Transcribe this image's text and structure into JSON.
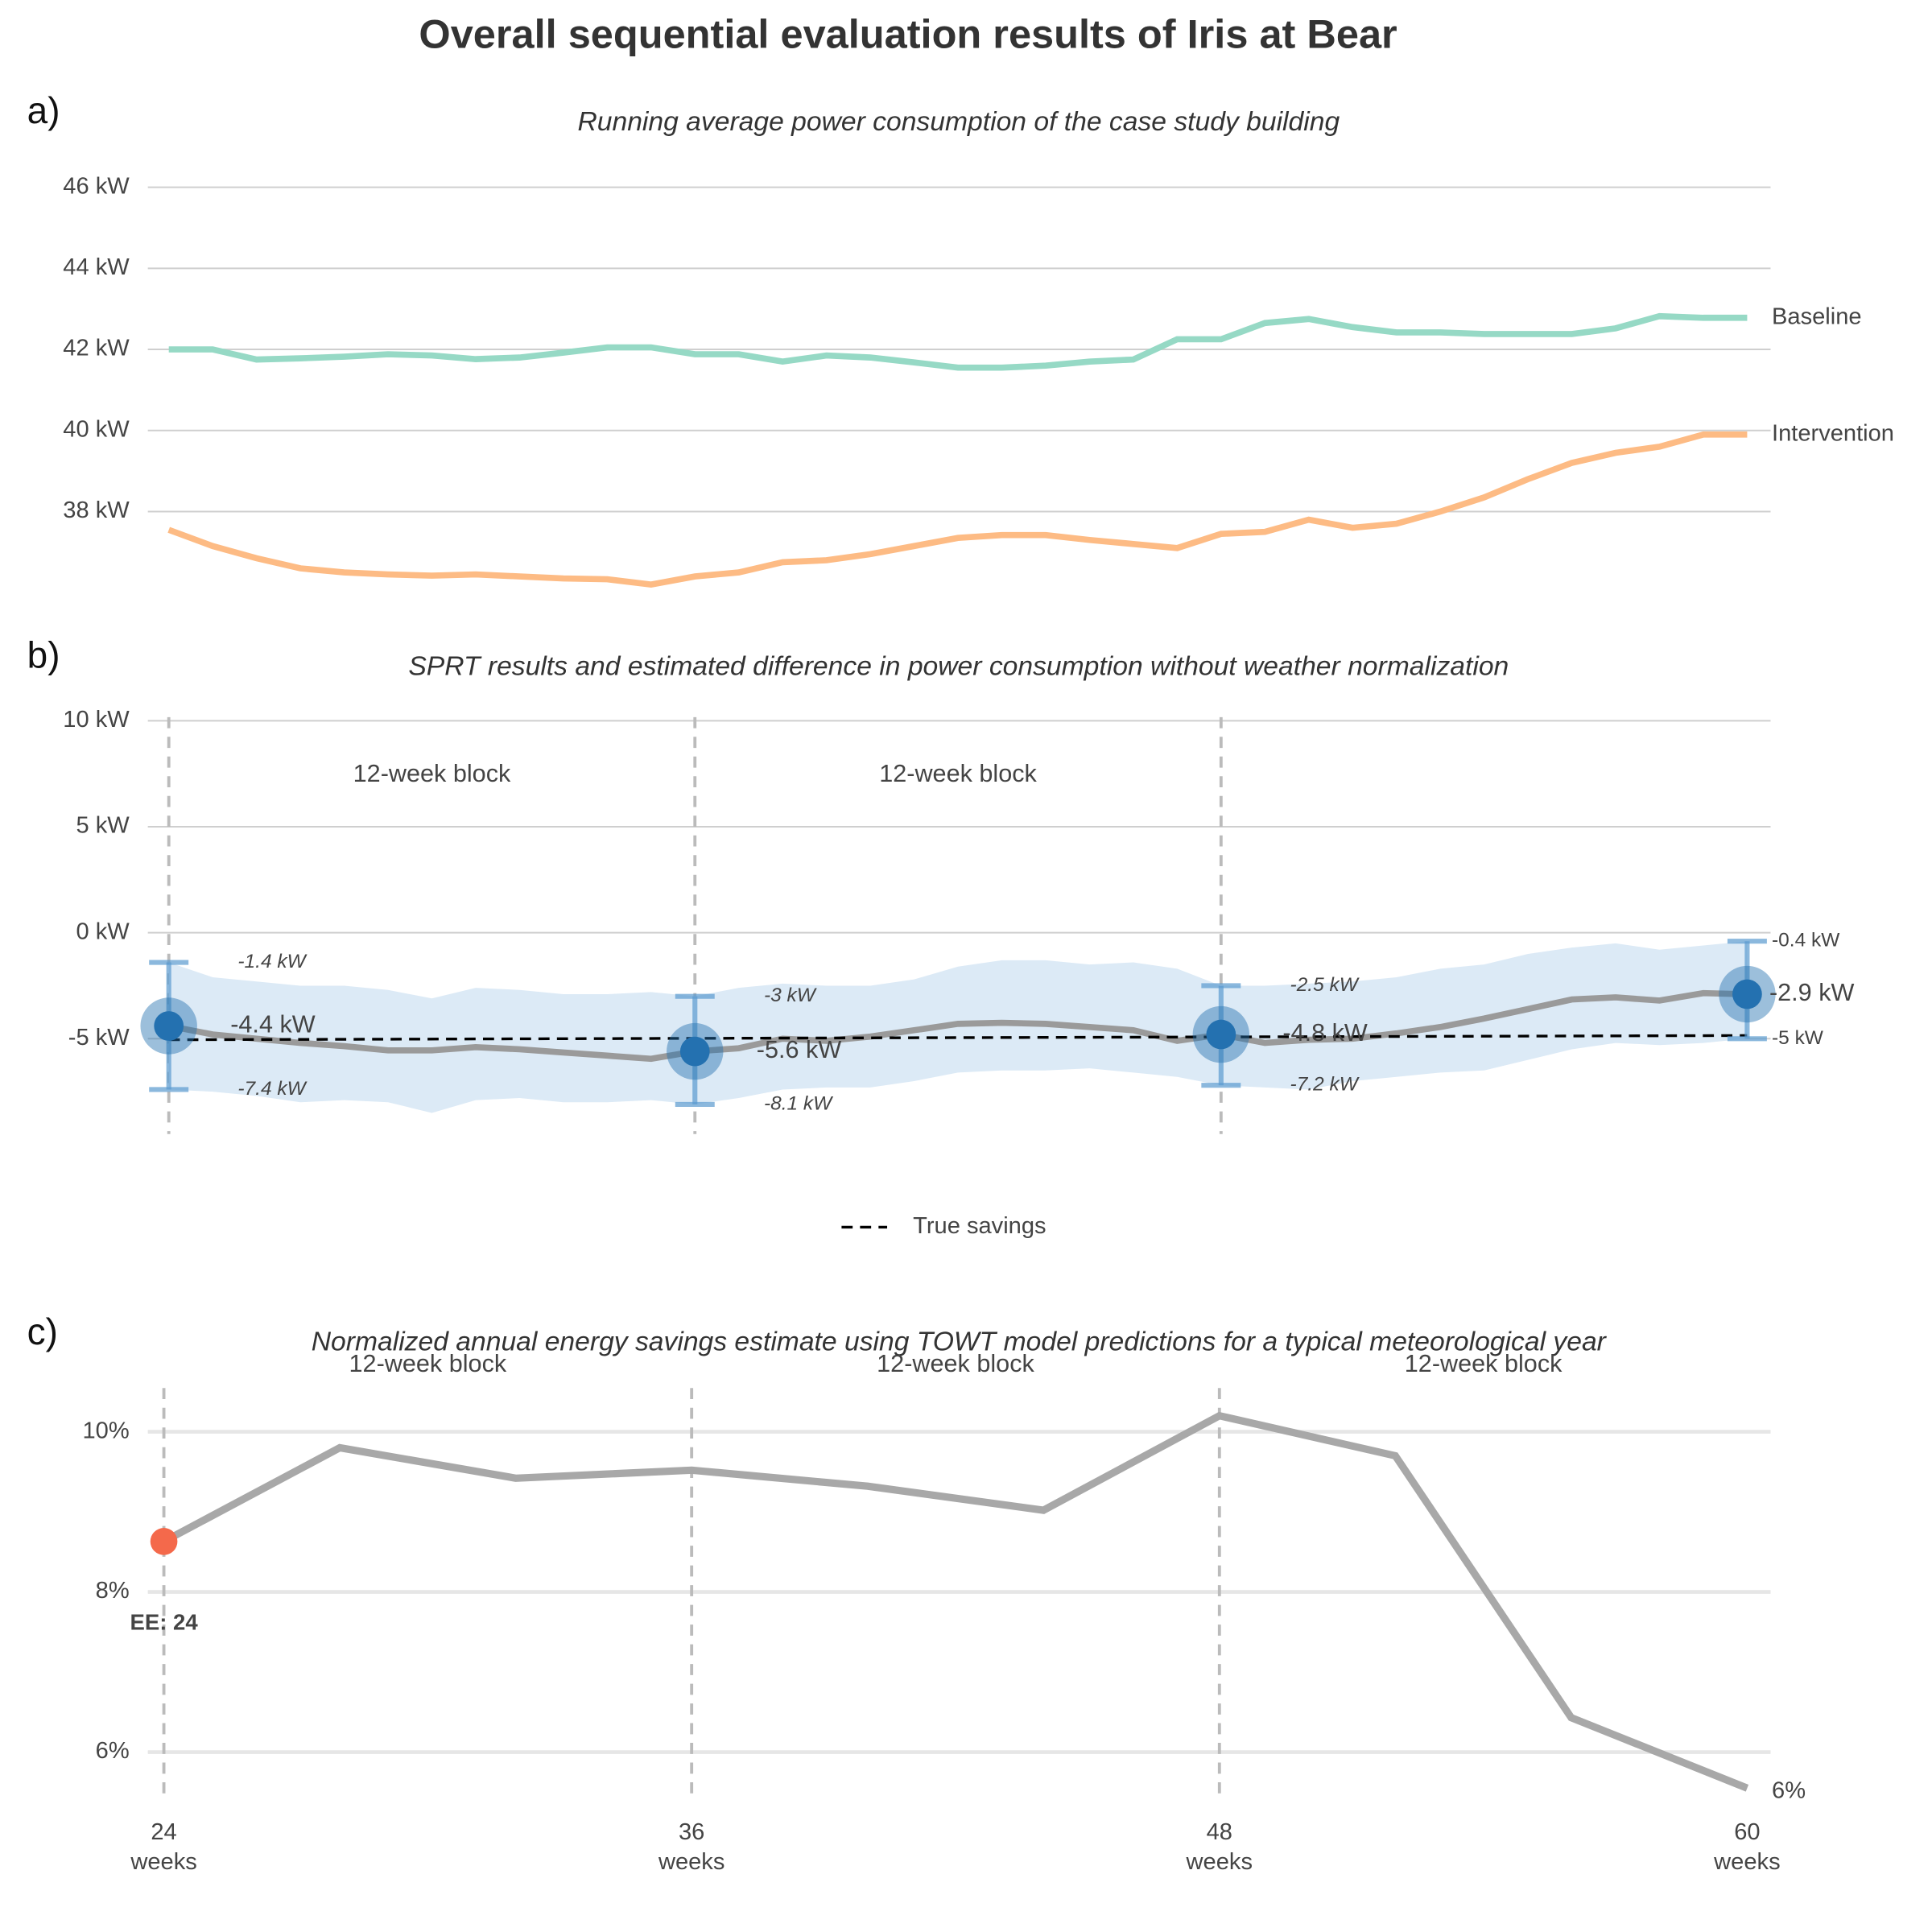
{
  "title": "Overall sequential evaluation results of Iris at Bear",
  "chart_data": [
    {
      "type": "line",
      "panel_label": "a)",
      "subtitle": "Running average power consumption of the case study building",
      "x": [
        24,
        25,
        26,
        27,
        28,
        29,
        30,
        31,
        32,
        33,
        34,
        35,
        36,
        37,
        38,
        39,
        40,
        41,
        42,
        43,
        44,
        45,
        46,
        47,
        48,
        49,
        50,
        51,
        52,
        53,
        54,
        55,
        56,
        57,
        58,
        59,
        60
      ],
      "series": [
        {
          "name": "Baseline",
          "color": "#96d9c5",
          "values": [
            42.0,
            42.0,
            41.75,
            41.78,
            41.82,
            41.88,
            41.85,
            41.76,
            41.8,
            41.92,
            42.05,
            42.05,
            41.88,
            41.88,
            41.7,
            41.85,
            41.8,
            41.68,
            41.55,
            41.55,
            41.6,
            41.7,
            41.75,
            42.25,
            42.25,
            42.65,
            42.75,
            42.55,
            42.42,
            42.42,
            42.38,
            42.38,
            42.38,
            42.52,
            42.82,
            42.78,
            42.78
          ]
        },
        {
          "name": "Intervention",
          "color": "#fdbb84",
          "values": [
            37.55,
            37.15,
            36.85,
            36.6,
            36.5,
            36.45,
            36.42,
            36.45,
            36.4,
            36.35,
            36.33,
            36.2,
            36.4,
            36.5,
            36.75,
            36.8,
            36.95,
            37.15,
            37.35,
            37.42,
            37.42,
            37.3,
            37.2,
            37.1,
            37.45,
            37.5,
            37.8,
            37.6,
            37.7,
            38.0,
            38.35,
            38.8,
            39.2,
            39.45,
            39.6,
            39.9,
            39.9
          ]
        }
      ],
      "xlim": [
        24,
        60
      ],
      "ylim": [
        36,
        46.4
      ],
      "yticks": [
        {
          "value": 38,
          "label": "38 kW"
        },
        {
          "value": 40,
          "label": "40 kW"
        },
        {
          "value": 42,
          "label": "42 kW"
        },
        {
          "value": 44,
          "label": "44 kW"
        },
        {
          "value": 46,
          "label": "46 kW"
        }
      ],
      "grid": true
    },
    {
      "type": "line",
      "panel_label": "b)",
      "subtitle": "SPRT results and estimated difference in power consumption without weather normalization",
      "x": [
        24,
        25,
        26,
        27,
        28,
        29,
        30,
        31,
        32,
        33,
        34,
        35,
        36,
        37,
        38,
        39,
        40,
        41,
        42,
        43,
        44,
        45,
        46,
        47,
        48,
        49,
        50,
        51,
        52,
        53,
        54,
        55,
        56,
        57,
        58,
        59,
        60
      ],
      "estimate": {
        "color": "#9a9a9a",
        "values": [
          -4.4,
          -4.8,
          -5.0,
          -5.2,
          -5.35,
          -5.55,
          -5.55,
          -5.4,
          -5.5,
          -5.65,
          -5.8,
          -5.95,
          -5.6,
          -5.45,
          -5.0,
          -5.1,
          -4.9,
          -4.6,
          -4.3,
          -4.25,
          -4.3,
          -4.45,
          -4.6,
          -5.1,
          -4.8,
          -5.2,
          -5.05,
          -5.0,
          -4.75,
          -4.45,
          -4.05,
          -3.6,
          -3.15,
          -3.05,
          -3.2,
          -2.85,
          -2.9
        ]
      },
      "band": {
        "color": "#dceaf6",
        "upper": [
          -1.4,
          -2.1,
          -2.3,
          -2.5,
          -2.5,
          -2.7,
          -3.1,
          -2.6,
          -2.7,
          -2.9,
          -2.9,
          -2.8,
          -3.0,
          -2.6,
          -2.4,
          -2.5,
          -2.5,
          -2.2,
          -1.6,
          -1.3,
          -1.3,
          -1.5,
          -1.4,
          -1.7,
          -2.5,
          -2.5,
          -2.4,
          -2.3,
          -2.1,
          -1.7,
          -1.5,
          -1.0,
          -0.7,
          -0.5,
          -0.8,
          -0.6,
          -0.4
        ],
        "lower": [
          -7.4,
          -7.5,
          -7.7,
          -8.0,
          -7.9,
          -8.0,
          -8.5,
          -7.9,
          -7.8,
          -8.0,
          -8.0,
          -7.9,
          -8.1,
          -7.8,
          -7.4,
          -7.3,
          -7.3,
          -7.0,
          -6.6,
          -6.5,
          -6.5,
          -6.4,
          -6.6,
          -6.8,
          -7.2,
          -7.3,
          -7.4,
          -7.0,
          -6.8,
          -6.6,
          -6.5,
          -6.0,
          -5.5,
          -5.2,
          -5.3,
          -5.2,
          -5.0
        ]
      },
      "true_savings": {
        "name": "True savings",
        "color": "#000000",
        "x": [
          24,
          60
        ],
        "values": [
          -5.05,
          -4.85
        ]
      },
      "checkpoints": {
        "color": "#2471b0",
        "x": [
          24,
          36,
          48,
          60
        ],
        "values": [
          -4.4,
          -5.6,
          -4.8,
          -2.9
        ],
        "value_labels": [
          "-4.4 kW",
          "-5.6 kW",
          "-4.8 kW",
          "-2.9 kW"
        ],
        "upper": [
          -1.4,
          -3,
          -2.5,
          -0.4
        ],
        "upper_labels": [
          "-1.4 kW",
          "-3 kW",
          "-2.5 kW",
          "-0.4 kW"
        ],
        "lower": [
          -7.4,
          -8.1,
          -7.2,
          -5
        ],
        "lower_labels": [
          "-7.4 kW",
          "-8.1 kW",
          "-7.2 kW",
          "-5 kW"
        ]
      },
      "block_lines": [
        24,
        36,
        48
      ],
      "block_labels": {
        "x": [
          30,
          42
        ],
        "text": [
          "12-week block",
          "12-week block"
        ]
      },
      "xlim": [
        24,
        60
      ],
      "ylim": [
        -9.5,
        10
      ],
      "yticks": [
        {
          "value": -5,
          "label": "-5 kW"
        },
        {
          "value": 0,
          "label": "0 kW"
        },
        {
          "value": 5,
          "label": "5 kW"
        },
        {
          "value": 10,
          "label": "10 kW"
        }
      ],
      "grid": true,
      "legend": "bottom"
    },
    {
      "type": "line",
      "panel_label": "c)",
      "subtitle": "Normalized annual energy savings estimate using TOWT model predictions for a typical meteorological year",
      "x": [
        24,
        28,
        32,
        36,
        40,
        44,
        48,
        52,
        56,
        60
      ],
      "values": [
        8.63,
        9.8,
        9.42,
        9.52,
        9.32,
        9.02,
        10.2,
        9.7,
        6.43,
        5.55
      ],
      "color": "#a8a8a8",
      "highlight_color": "#f4694b",
      "highlight_label": "EE: 24",
      "end_label": "6%",
      "block_lines": [
        24,
        36,
        48
      ],
      "block_labels": {
        "x": [
          30,
          42,
          54
        ],
        "text": [
          "12-week block",
          "12-week block",
          "12-week block"
        ]
      },
      "xlim": [
        24,
        60
      ],
      "ylim": [
        5.4,
        10.5
      ],
      "xticks": [
        {
          "value": 24,
          "label": "24\nweeks"
        },
        {
          "value": 36,
          "label": "36\nweeks"
        },
        {
          "value": 48,
          "label": "48\nweeks"
        },
        {
          "value": 60,
          "label": "60\nweeks"
        }
      ],
      "yticks": [
        {
          "value": 6,
          "label": "6%"
        },
        {
          "value": 8,
          "label": "8%"
        },
        {
          "value": 10,
          "label": "10%"
        }
      ],
      "grid": true
    }
  ]
}
